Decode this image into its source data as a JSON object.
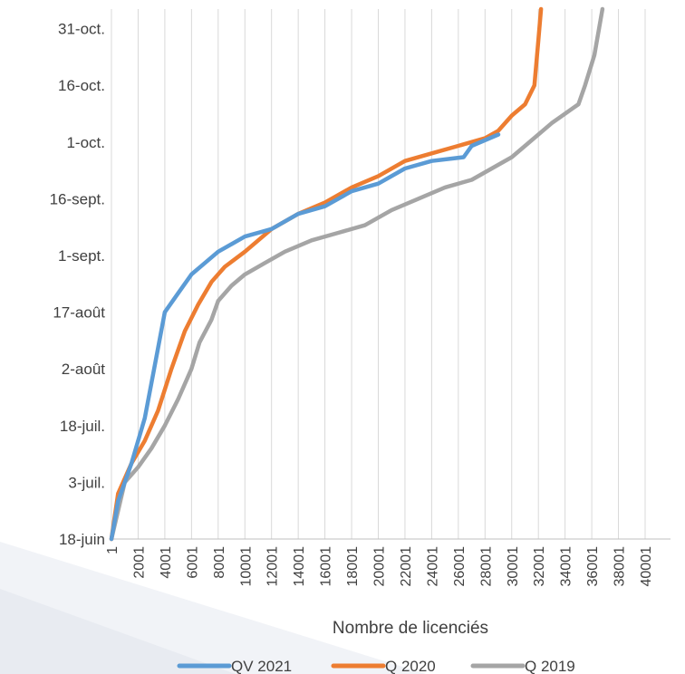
{
  "chart_data": {
    "type": "line",
    "xlabel": "Nombre de licenciés",
    "ylabel": "",
    "title": "",
    "xlim": [
      1,
      42000
    ],
    "x_ticks": [
      "1",
      "2001",
      "4001",
      "6001",
      "8001",
      "10001",
      "12001",
      "14001",
      "16001",
      "18001",
      "20001",
      "22001",
      "24001",
      "26001",
      "28001",
      "30001",
      "32001",
      "34001",
      "36001",
      "38001",
      "40001"
    ],
    "y_ticks": [
      "18-juin",
      "3-juil.",
      "18-juil.",
      "2-août",
      "17-août",
      "1-sept.",
      "16-sept.",
      "1-oct.",
      "16-oct.",
      "31-oct."
    ],
    "ylim_days": [
      0,
      137
    ],
    "grid": "vertical",
    "legend_position": "bottom",
    "series": [
      {
        "name": "QV 2021",
        "color": "#5b9bd5",
        "points": [
          [
            1,
            0
          ],
          [
            500,
            10
          ],
          [
            1500,
            20
          ],
          [
            2500,
            32
          ],
          [
            3200,
            45
          ],
          [
            4001,
            60
          ],
          [
            5001,
            65
          ],
          [
            6001,
            70
          ],
          [
            7001,
            73
          ],
          [
            8001,
            76
          ],
          [
            9001,
            78
          ],
          [
            10001,
            80
          ],
          [
            12001,
            82
          ],
          [
            14001,
            86
          ],
          [
            16001,
            88
          ],
          [
            18001,
            92
          ],
          [
            20001,
            94
          ],
          [
            22001,
            98
          ],
          [
            24001,
            100
          ],
          [
            26401,
            101
          ],
          [
            27001,
            104
          ],
          [
            29001,
            107
          ]
        ]
      },
      {
        "name": "Q 2020",
        "color": "#ed7d31",
        "points": [
          [
            1,
            0
          ],
          [
            500,
            12
          ],
          [
            1500,
            20
          ],
          [
            2500,
            26
          ],
          [
            3500,
            34
          ],
          [
            4500,
            45
          ],
          [
            5500,
            55
          ],
          [
            6500,
            62
          ],
          [
            7500,
            68
          ],
          [
            8500,
            72
          ],
          [
            10001,
            76
          ],
          [
            11001,
            79
          ],
          [
            12001,
            82
          ],
          [
            14001,
            86
          ],
          [
            16001,
            89
          ],
          [
            18001,
            93
          ],
          [
            20001,
            96
          ],
          [
            22001,
            100
          ],
          [
            24001,
            102
          ],
          [
            26001,
            104
          ],
          [
            28001,
            106
          ],
          [
            29001,
            108
          ],
          [
            30001,
            112
          ],
          [
            31001,
            115
          ],
          [
            31701,
            120
          ],
          [
            32001,
            132
          ],
          [
            32201,
            145
          ]
        ]
      },
      {
        "name": "Q 2019",
        "color": "#a5a5a5",
        "points": [
          [
            1,
            0
          ],
          [
            1001,
            15
          ],
          [
            2001,
            19
          ],
          [
            3001,
            24
          ],
          [
            4001,
            30
          ],
          [
            5001,
            37
          ],
          [
            6001,
            45
          ],
          [
            6601,
            52
          ],
          [
            7501,
            58
          ],
          [
            8001,
            63
          ],
          [
            9001,
            67
          ],
          [
            10001,
            70
          ],
          [
            11501,
            73
          ],
          [
            13001,
            76
          ],
          [
            15001,
            79
          ],
          [
            17001,
            81
          ],
          [
            19001,
            83
          ],
          [
            21001,
            87
          ],
          [
            23001,
            90
          ],
          [
            25001,
            93
          ],
          [
            27001,
            95
          ],
          [
            28501,
            98
          ],
          [
            30001,
            101
          ],
          [
            31001,
            104
          ],
          [
            33001,
            110
          ],
          [
            35001,
            115
          ],
          [
            35501,
            120
          ],
          [
            36201,
            128
          ],
          [
            36801,
            145
          ]
        ]
      }
    ]
  }
}
